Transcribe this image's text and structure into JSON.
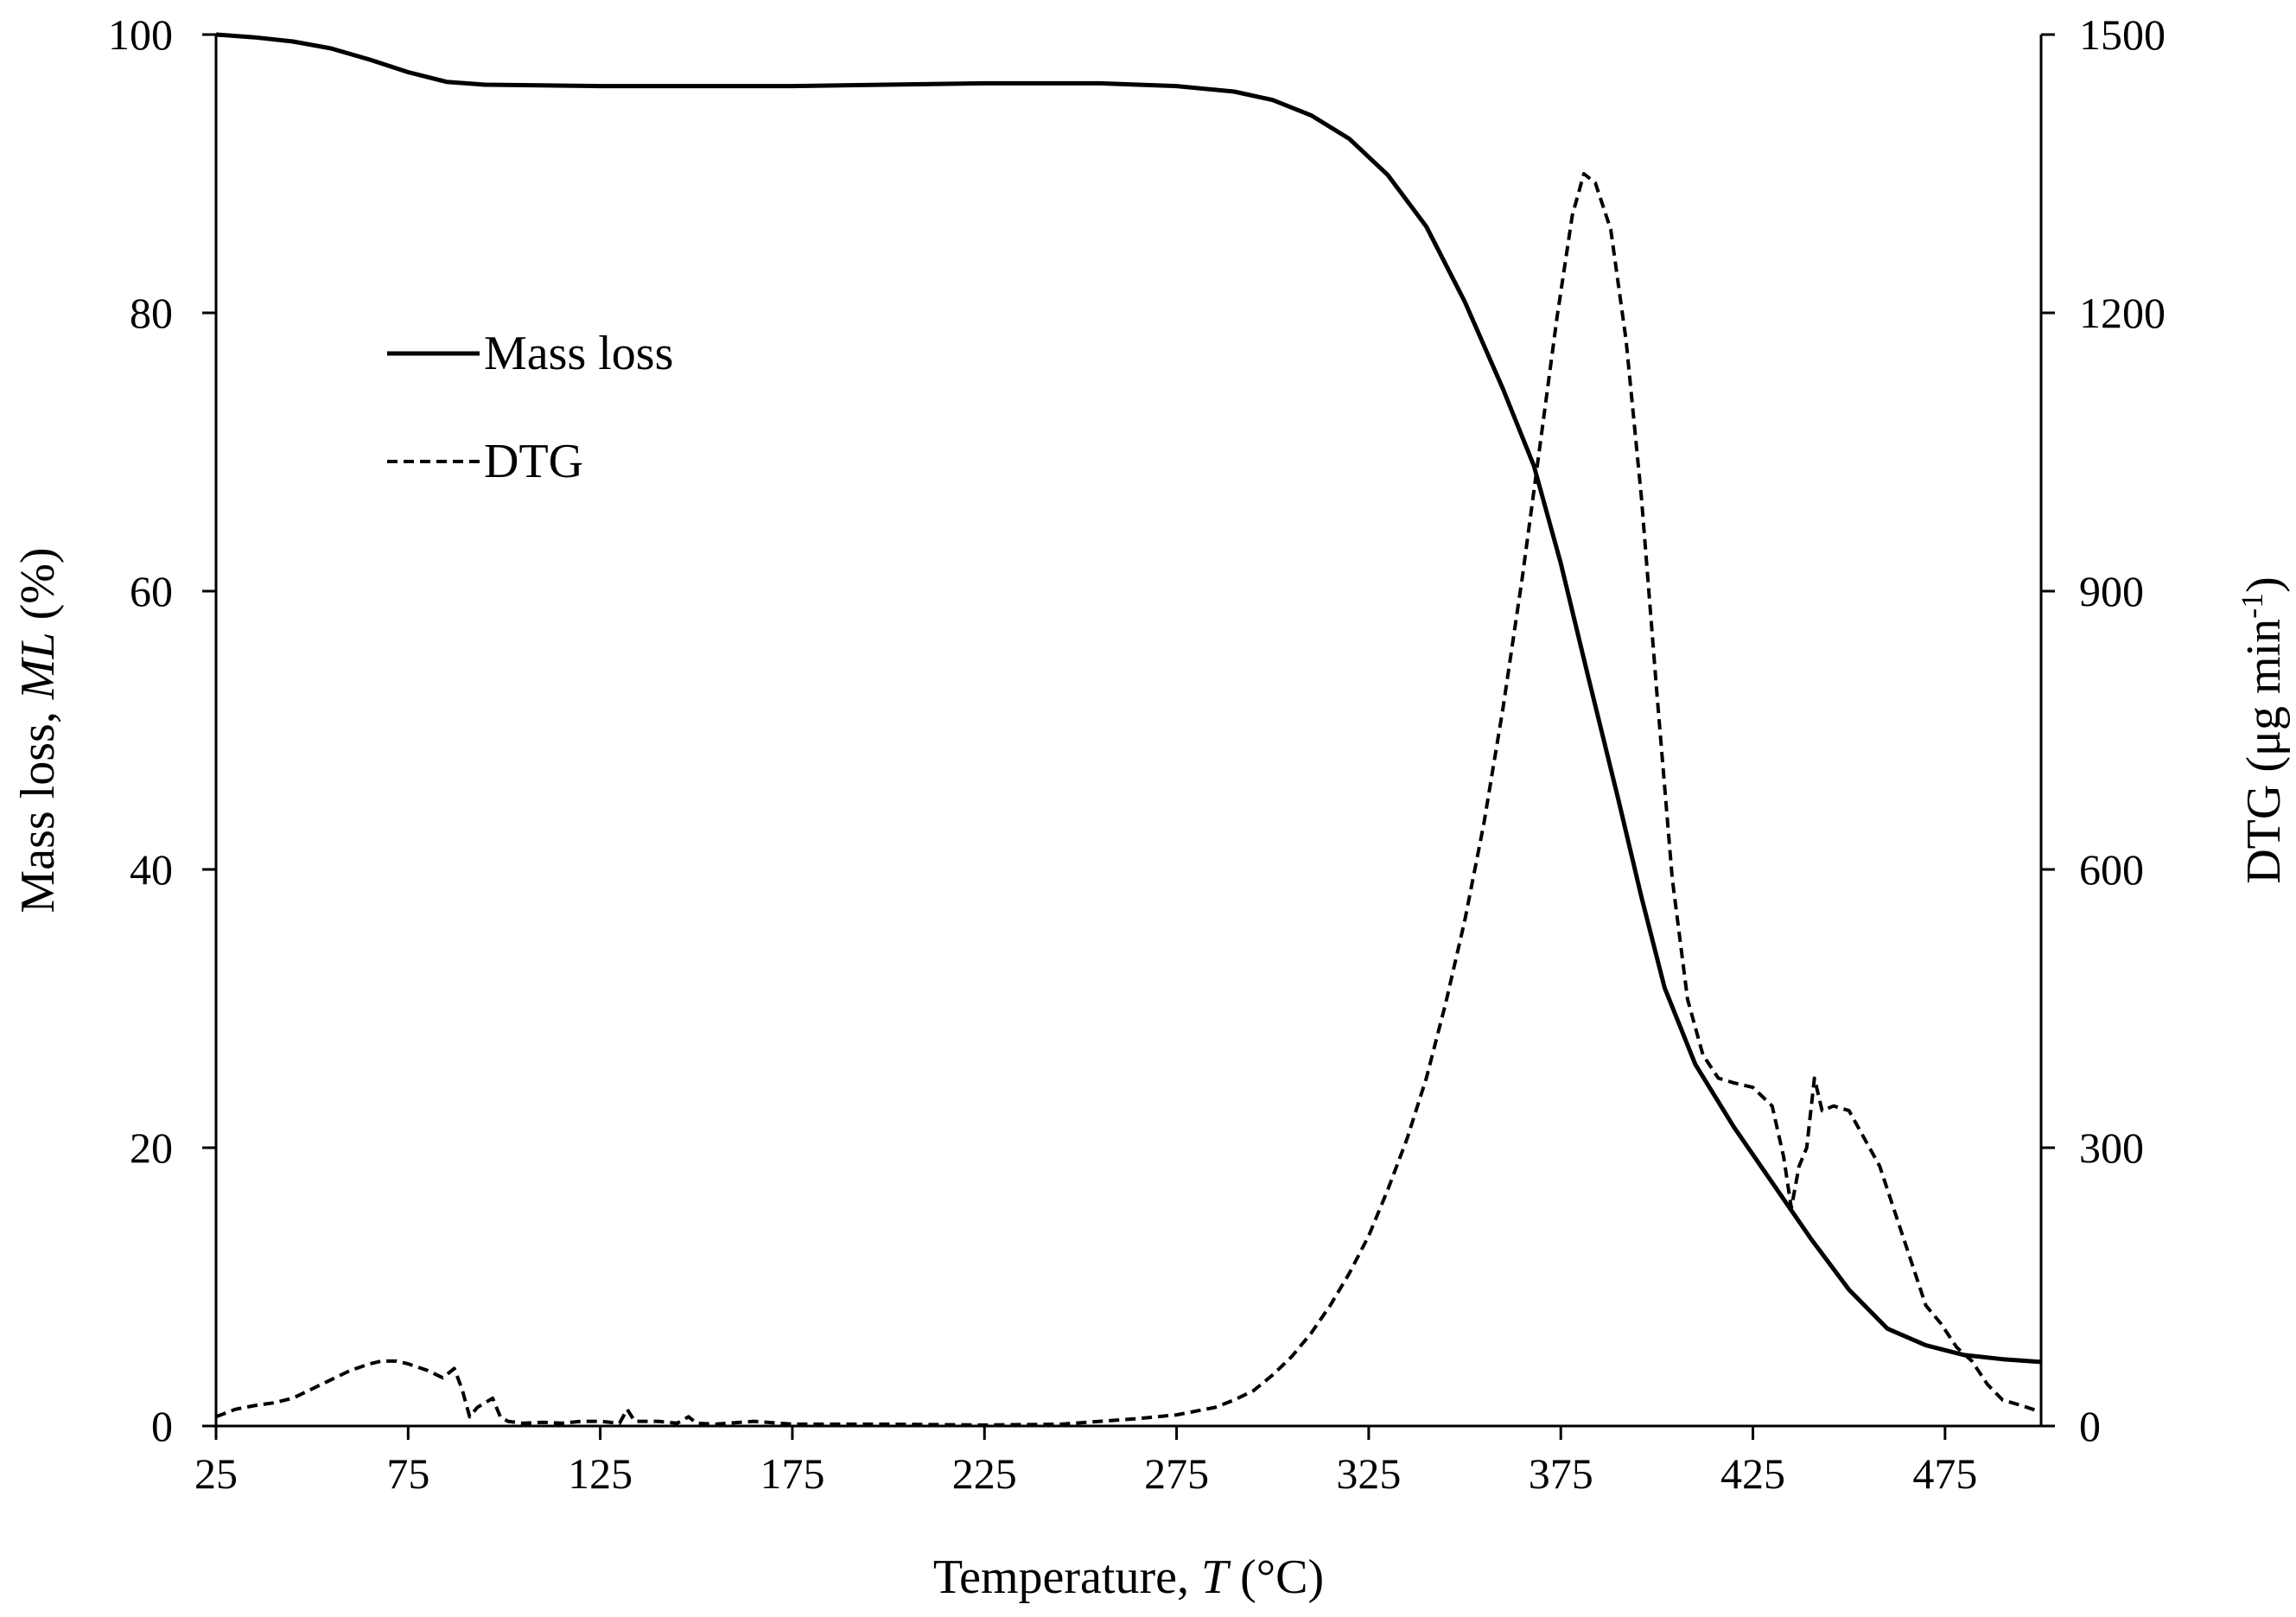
{
  "chart_data": {
    "type": "line",
    "title": "",
    "xlabel": {
      "prefix": "Temperature, ",
      "italic": "T",
      "suffix": " (°C)"
    },
    "ylabel_left": {
      "prefix": "Mass loss, ",
      "italic": "ML",
      "suffix": " (%)"
    },
    "ylabel_right": {
      "text": "DTG (μg min",
      "sup": "-1",
      "suffix": ")"
    },
    "xlim": [
      25,
      500
    ],
    "ylim_left": [
      0,
      100
    ],
    "ylim_right": [
      0,
      1500
    ],
    "x_ticks": [
      "25",
      "75",
      "125",
      "175",
      "225",
      "275",
      "325",
      "375",
      "425",
      "475"
    ],
    "y_left_ticks": [
      "0",
      "20",
      "40",
      "60",
      "80",
      "100"
    ],
    "y_right_ticks": [
      "0",
      "300",
      "600",
      "900",
      "1200",
      "1500"
    ],
    "grid": false,
    "legend": {
      "placement": "top-left",
      "entries": [
        {
          "label": "Mass loss",
          "style": "solid"
        },
        {
          "label": "DTG",
          "style": "dashed"
        }
      ]
    },
    "series": [
      {
        "name": "Mass loss",
        "axis": "left",
        "style": "solid",
        "points": [
          [
            25,
            100
          ],
          [
            35,
            99.8
          ],
          [
            45,
            99.5
          ],
          [
            55,
            99.0
          ],
          [
            65,
            98.2
          ],
          [
            75,
            97.3
          ],
          [
            85,
            96.6
          ],
          [
            95,
            96.4
          ],
          [
            125,
            96.3
          ],
          [
            175,
            96.3
          ],
          [
            225,
            96.5
          ],
          [
            255,
            96.5
          ],
          [
            275,
            96.3
          ],
          [
            290,
            95.9
          ],
          [
            300,
            95.3
          ],
          [
            310,
            94.2
          ],
          [
            320,
            92.5
          ],
          [
            330,
            89.9
          ],
          [
            340,
            86.2
          ],
          [
            350,
            80.8
          ],
          [
            360,
            74.5
          ],
          [
            368,
            69.0
          ],
          [
            375,
            62.0
          ],
          [
            382,
            54.0
          ],
          [
            390,
            45.0
          ],
          [
            396,
            38.0
          ],
          [
            402,
            31.5
          ],
          [
            410,
            26.0
          ],
          [
            420,
            21.5
          ],
          [
            430,
            17.5
          ],
          [
            440,
            13.5
          ],
          [
            450,
            9.8
          ],
          [
            460,
            7.0
          ],
          [
            470,
            5.8
          ],
          [
            480,
            5.1
          ],
          [
            490,
            4.8
          ],
          [
            500,
            4.6
          ]
        ]
      },
      {
        "name": "DTG",
        "axis": "right",
        "style": "dashed",
        "points": [
          [
            25,
            10
          ],
          [
            30,
            18
          ],
          [
            35,
            22
          ],
          [
            40,
            25
          ],
          [
            45,
            30
          ],
          [
            50,
            40
          ],
          [
            55,
            50
          ],
          [
            60,
            60
          ],
          [
            65,
            67
          ],
          [
            68,
            70
          ],
          [
            72,
            70
          ],
          [
            75,
            67
          ],
          [
            80,
            60
          ],
          [
            84,
            52
          ],
          [
            87,
            62
          ],
          [
            89,
            40
          ],
          [
            91,
            10
          ],
          [
            93,
            20
          ],
          [
            95,
            25
          ],
          [
            97,
            30
          ],
          [
            99,
            10
          ],
          [
            101,
            5
          ],
          [
            105,
            3
          ],
          [
            110,
            4
          ],
          [
            115,
            3
          ],
          [
            120,
            5
          ],
          [
            125,
            5
          ],
          [
            130,
            3
          ],
          [
            132,
            18
          ],
          [
            134,
            5
          ],
          [
            140,
            5
          ],
          [
            145,
            3
          ],
          [
            148,
            10
          ],
          [
            150,
            3
          ],
          [
            155,
            2
          ],
          [
            165,
            5
          ],
          [
            175,
            2
          ],
          [
            200,
            2
          ],
          [
            225,
            1
          ],
          [
            245,
            2
          ],
          [
            255,
            5
          ],
          [
            265,
            8
          ],
          [
            275,
            12
          ],
          [
            285,
            20
          ],
          [
            290,
            28
          ],
          [
            295,
            38
          ],
          [
            300,
            55
          ],
          [
            305,
            75
          ],
          [
            310,
            100
          ],
          [
            315,
            130
          ],
          [
            320,
            165
          ],
          [
            325,
            205
          ],
          [
            330,
            255
          ],
          [
            335,
            310
          ],
          [
            340,
            375
          ],
          [
            345,
            455
          ],
          [
            350,
            545
          ],
          [
            355,
            650
          ],
          [
            360,
            775
          ],
          [
            365,
            915
          ],
          [
            370,
            1070
          ],
          [
            374,
            1195
          ],
          [
            378,
            1305
          ],
          [
            381,
            1350
          ],
          [
            384,
            1340
          ],
          [
            388,
            1290
          ],
          [
            392,
            1170
          ],
          [
            396,
            1000
          ],
          [
            400,
            790
          ],
          [
            404,
            590
          ],
          [
            408,
            460
          ],
          [
            412,
            400
          ],
          [
            416,
            375
          ],
          [
            420,
            370
          ],
          [
            425,
            365
          ],
          [
            430,
            345
          ],
          [
            433,
            290
          ],
          [
            435,
            235
          ],
          [
            437,
            280
          ],
          [
            439,
            300
          ],
          [
            441,
            375
          ],
          [
            443,
            340
          ],
          [
            446,
            345
          ],
          [
            450,
            340
          ],
          [
            454,
            310
          ],
          [
            458,
            280
          ],
          [
            462,
            230
          ],
          [
            466,
            180
          ],
          [
            470,
            130
          ],
          [
            474,
            110
          ],
          [
            478,
            85
          ],
          [
            482,
            70
          ],
          [
            486,
            45
          ],
          [
            490,
            28
          ],
          [
            495,
            22
          ],
          [
            500,
            15
          ]
        ]
      }
    ]
  }
}
